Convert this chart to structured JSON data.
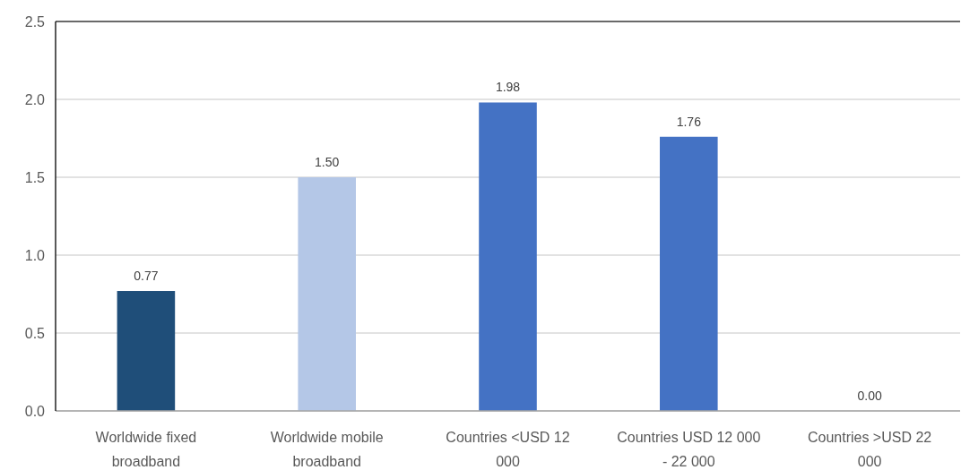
{
  "chart_data": {
    "type": "bar",
    "categories": [
      "Worldwide fixed broadband",
      "Worldwide mobile broadband",
      "Countries <USD 12 000",
      "Countries USD 12 000 - 22 000",
      "Countries >USD 22 000"
    ],
    "values": [
      0.77,
      1.5,
      1.98,
      1.76,
      0
    ],
    "colors": [
      "#1f4e79",
      "#b4c7e7",
      "#4472c4",
      "#4472c4",
      "#4472c4"
    ],
    "value_labels": [
      "0.77",
      "1.50",
      "1.98",
      "1.76",
      "0.00"
    ],
    "ylim": [
      0,
      2.5
    ],
    "yticks": [
      {
        "value": 0,
        "label": "0.0"
      },
      0.5,
      {
        "value": 1,
        "label": "1.0"
      },
      1.5,
      {
        "value": 2,
        "label": "2.0"
      },
      2.5
    ],
    "grid": "y"
  }
}
